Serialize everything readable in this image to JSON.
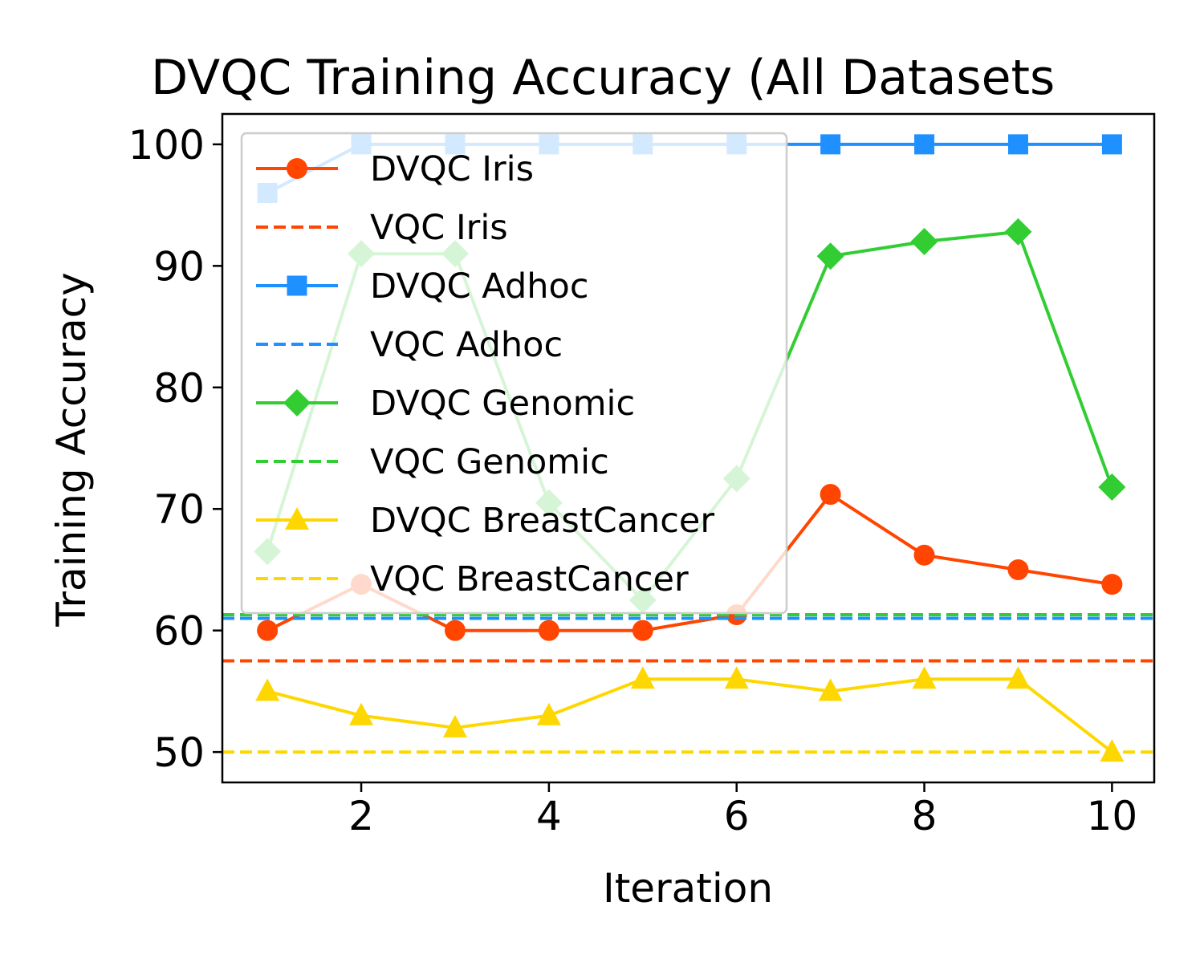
{
  "chart_data": {
    "type": "line",
    "title": "DVQC Training Accuracy (All Datasets",
    "xlabel": "Iteration",
    "ylabel": "Training Accuracy",
    "xlim": [
      0.52,
      10.45
    ],
    "ylim": [
      47.5,
      102.5
    ],
    "xticks": [
      2,
      4,
      6,
      8,
      10
    ],
    "yticks": [
      50,
      60,
      70,
      80,
      90,
      100
    ],
    "grid": false,
    "legend_position": "upper-left",
    "x": [
      1,
      2,
      3,
      4,
      5,
      6,
      7,
      8,
      9,
      10
    ],
    "series": [
      {
        "name": "DVQC Iris",
        "kind": "line",
        "color": "#FF4500",
        "marker": "circle",
        "values": [
          60,
          63.8,
          60,
          60,
          60,
          61.3,
          71.2,
          66.2,
          65,
          63.8
        ]
      },
      {
        "name": "VQC Iris",
        "kind": "hline",
        "color": "#FF4500",
        "marker": "none",
        "value": 57.5
      },
      {
        "name": "DVQC Adhoc",
        "kind": "line",
        "color": "#1E90FF",
        "marker": "square",
        "values": [
          96,
          100,
          100,
          100,
          100,
          100,
          100,
          100,
          100,
          100
        ]
      },
      {
        "name": "VQC Adhoc",
        "kind": "hline",
        "color": "#1E90FF",
        "marker": "none",
        "value": 61
      },
      {
        "name": "DVQC Genomic",
        "kind": "line",
        "color": "#32CD32",
        "marker": "diamond",
        "values": [
          66.5,
          91,
          91,
          70.5,
          62.5,
          72.5,
          90.8,
          92,
          92.8,
          71.8
        ]
      },
      {
        "name": "VQC Genomic",
        "kind": "hline",
        "color": "#32CD32",
        "marker": "none",
        "value": 61.3
      },
      {
        "name": "DVQC BreastCancer",
        "kind": "line",
        "color": "#FFD700",
        "marker": "triangle",
        "values": [
          55,
          53,
          52,
          53,
          56,
          56,
          55,
          56,
          56,
          50
        ]
      },
      {
        "name": "VQC BreastCancer",
        "kind": "hline",
        "color": "#FFD700",
        "marker": "none",
        "value": 50
      }
    ]
  }
}
